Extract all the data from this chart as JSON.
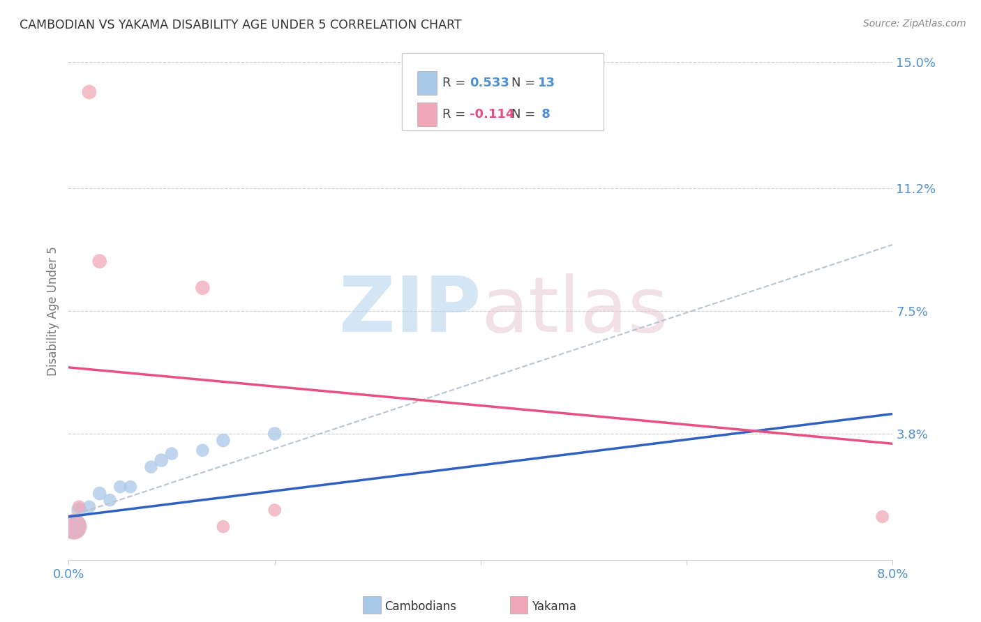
{
  "title": "CAMBODIAN VS YAKAMA DISABILITY AGE UNDER 5 CORRELATION CHART",
  "source": "Source: ZipAtlas.com",
  "ylabel": "Disability Age Under 5",
  "xlim": [
    0.0,
    0.08
  ],
  "ylim": [
    0.0,
    0.15
  ],
  "xticks": [
    0.0,
    0.02,
    0.04,
    0.06,
    0.08
  ],
  "xticklabels": [
    "0.0%",
    "",
    "",
    "",
    "8.0%"
  ],
  "yticks_right": [
    0.038,
    0.075,
    0.112,
    0.15
  ],
  "yticklabels_right": [
    "3.8%",
    "7.5%",
    "11.2%",
    "15.0%"
  ],
  "blue_color": "#a8c8e8",
  "pink_color": "#f0a8b8",
  "blue_line_color": "#3060c0",
  "pink_line_color": "#e85080",
  "gray_dash_color": "#b8c4d0",
  "cambodian_x": [
    0.0005,
    0.001,
    0.002,
    0.003,
    0.004,
    0.005,
    0.006,
    0.008,
    0.009,
    0.01,
    0.013,
    0.015,
    0.02
  ],
  "cambodian_y": [
    0.01,
    0.015,
    0.016,
    0.02,
    0.018,
    0.022,
    0.022,
    0.028,
    0.03,
    0.032,
    0.033,
    0.036,
    0.038
  ],
  "cambodian_size": [
    700,
    250,
    180,
    200,
    180,
    180,
    180,
    180,
    200,
    180,
    180,
    200,
    200
  ],
  "yakama_x": [
    0.0005,
    0.001,
    0.002,
    0.003,
    0.013,
    0.015,
    0.02,
    0.079
  ],
  "yakama_y": [
    0.01,
    0.016,
    0.141,
    0.09,
    0.082,
    0.01,
    0.015,
    0.013
  ],
  "yakama_size": [
    700,
    180,
    220,
    220,
    220,
    180,
    180,
    180
  ],
  "blue_trend": [
    0.013,
    0.044
  ],
  "pink_trend": [
    0.058,
    0.035
  ],
  "gray_trend": [
    0.013,
    0.095
  ],
  "background_color": "#ffffff"
}
